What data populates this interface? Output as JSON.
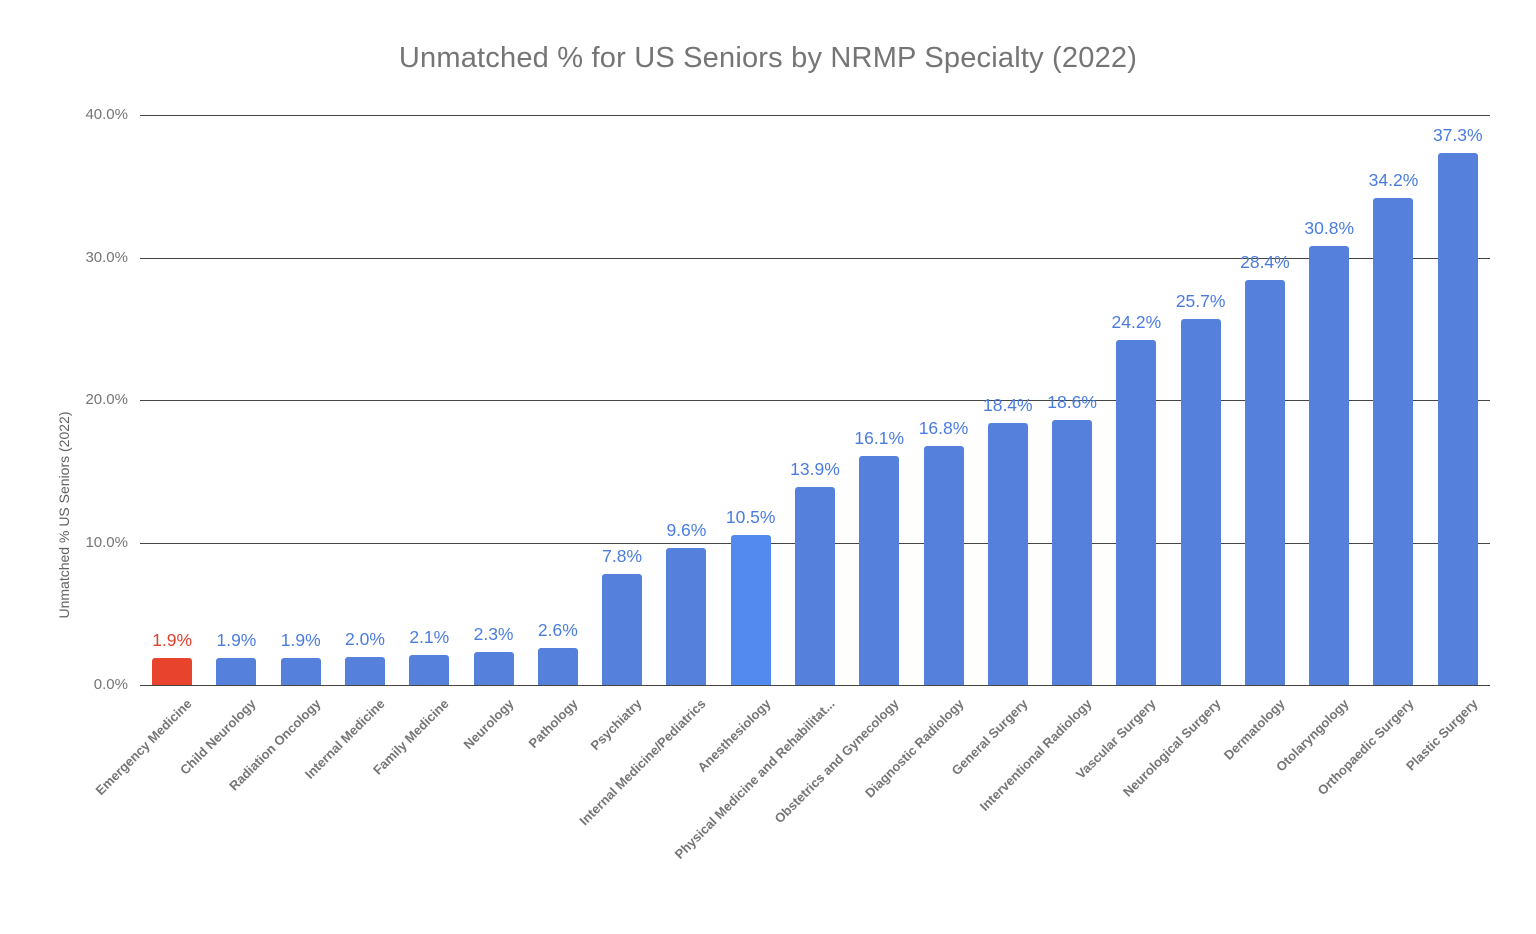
{
  "title": "Unmatched % for US Seniors by NRMP Specialty (2022)",
  "y_axis": {
    "title": "Unmatched % US Seniors (2022)",
    "ticks": [
      {
        "label": "40.0%",
        "value": 40
      },
      {
        "label": "30.0%",
        "value": 30
      },
      {
        "label": "20.0%",
        "value": 20
      },
      {
        "label": "10.0%",
        "value": 10
      },
      {
        "label": "0.0%",
        "value": 0
      }
    ]
  },
  "chart_data": {
    "type": "bar",
    "title": "Unmatched % for US Seniors by NRMP Specialty (2022)",
    "xlabel": "",
    "ylabel": "Unmatched % US Seniors (2022)",
    "ylim": [
      0,
      40
    ],
    "grid": "horizontal",
    "legend": "none",
    "categories": [
      "Emergency Medicine",
      "Child Neurology",
      "Radiation Oncology",
      "Internal Medicine",
      "Family Medicine",
      "Neurology",
      "Pathology",
      "Psychiatry",
      "Internal Medicine/Pediatrics",
      "Anesthesiology",
      "Physical Medicine and Rehabilitat...",
      "Obstetrics and Gynecology",
      "Diagnostic Radiology",
      "General Surgery",
      "Interventional Radiology",
      "Vascular Surgery",
      "Neurological Surgery",
      "Dermatology",
      "Otolaryngology",
      "Orthopaedic Surgery",
      "Plastic Surgery"
    ],
    "values": [
      1.9,
      1.9,
      1.9,
      2.0,
      2.1,
      2.3,
      2.6,
      7.8,
      9.6,
      10.5,
      13.9,
      16.1,
      16.8,
      18.4,
      18.6,
      24.2,
      25.7,
      28.4,
      30.8,
      34.2,
      37.3
    ],
    "data_labels": [
      "1.9%",
      "1.9%",
      "1.9%",
      "2.0%",
      "2.1%",
      "2.3%",
      "2.6%",
      "7.8%",
      "9.6%",
      "10.5%",
      "13.9%",
      "16.1%",
      "16.8%",
      "18.4%",
      "18.6%",
      "24.2%",
      "25.7%",
      "28.4%",
      "30.8%",
      "34.2%",
      "37.3%"
    ],
    "bar_colors": [
      "#e8432d",
      "#5581dd",
      "#5581dd",
      "#5581dd",
      "#5581dd",
      "#5581dd",
      "#5581dd",
      "#5581dd",
      "#5581dd",
      "#538aef",
      "#5581dd",
      "#5581dd",
      "#5581dd",
      "#5581dd",
      "#5581dd",
      "#5581dd",
      "#5581dd",
      "#5581dd",
      "#5581dd",
      "#5581dd",
      "#5581dd"
    ],
    "data_label_colors": [
      "#e0402c",
      "#4a7ce0",
      "#4a7ce0",
      "#4a7ce0",
      "#4a7ce0",
      "#4a7ce0",
      "#4a7ce0",
      "#4a7ce0",
      "#4a7ce0",
      "#4a7ce0",
      "#4a7ce0",
      "#4a7ce0",
      "#4a7ce0",
      "#4a7ce0",
      "#4a7ce0",
      "#4a7ce0",
      "#4a7ce0",
      "#4a7ce0",
      "#4a7ce0",
      "#4a7ce0",
      "#4a7ce0"
    ],
    "highlighted_bar": "Emergency Medicine"
  },
  "colors": {
    "bar_blue": "#5581dd",
    "bar_blue_bright": "#538aef",
    "bar_red": "#e8432d",
    "data_label_blue": "#4a7ce0",
    "data_label_red": "#e0402c",
    "gridline": "#454545",
    "axis_text": "#757575",
    "title_text": "#757575"
  }
}
